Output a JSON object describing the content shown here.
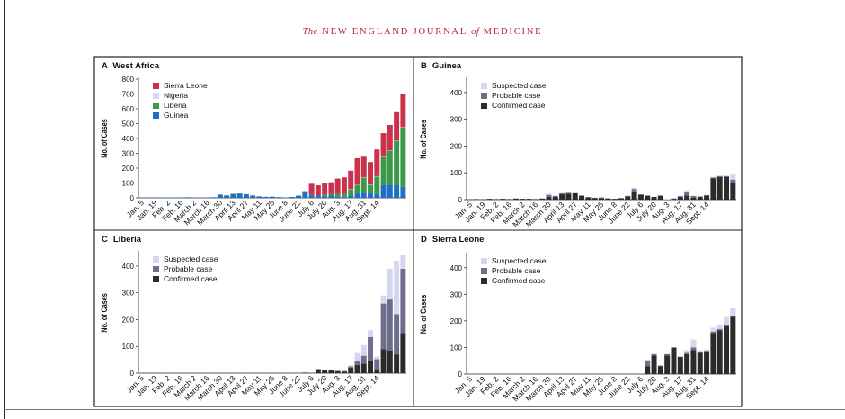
{
  "journal": {
    "title_pre": "The",
    "title_main": "NEW ENGLAND JOURNAL",
    "title_of": "of",
    "title_post": "MEDICINE"
  },
  "colors": {
    "sierra_leone": "#c8324a",
    "nigeria": "#d8d8ee",
    "liberia": "#3b9a4a",
    "guinea": "#1f6fc4",
    "suspected": "#d6d7ef",
    "probable": "#6e6e8c",
    "confirmed": "#2b2b2b"
  },
  "chart_data": [
    {
      "id": "A",
      "panel_letter": "A",
      "title": "West Africa",
      "type": "bar",
      "stacked": true,
      "ylabel": "No. of Cases",
      "ylim": [
        0,
        800
      ],
      "yticks": [
        0,
        100,
        200,
        300,
        400,
        500,
        600,
        700,
        800
      ],
      "x_tick_labels": [
        "Jan. 5",
        "Jan. 19",
        "Feb. 2",
        "Feb. 16",
        "March 2",
        "March 16",
        "March 30",
        "April 13",
        "April 27",
        "May 11",
        "May 25",
        "June 8",
        "June 22",
        "July 6",
        "July 20",
        "Aug. 3",
        "Aug. 17",
        "Aug. 31",
        "Sept. 14"
      ],
      "legend": [
        "Sierra Leone",
        "Nigeria",
        "Liberia",
        "Guinea"
      ],
      "legend_position": "top-left",
      "series": [
        {
          "name": "Guinea",
          "color_key": "guinea",
          "values": [
            1,
            2,
            1,
            3,
            2,
            3,
            2,
            4,
            3,
            3,
            2,
            4,
            22,
            15,
            25,
            27,
            24,
            16,
            10,
            7,
            8,
            5,
            3,
            6,
            15,
            45,
            20,
            15,
            10,
            15,
            10,
            8,
            15,
            30,
            35,
            30,
            25,
            85,
            90,
            85,
            75
          ]
        },
        {
          "name": "Liberia",
          "color_key": "liberia",
          "values": [
            0,
            0,
            0,
            0,
            0,
            0,
            0,
            0,
            0,
            0,
            0,
            0,
            0,
            2,
            3,
            3,
            1,
            0,
            0,
            0,
            0,
            0,
            0,
            0,
            0,
            0,
            0,
            0,
            12,
            10,
            15,
            20,
            40,
            55,
            100,
            60,
            120,
            190,
            230,
            300,
            400
          ]
        },
        {
          "name": "Nigeria",
          "color_key": "nigeria",
          "values": [
            0,
            0,
            0,
            0,
            0,
            0,
            0,
            0,
            0,
            0,
            0,
            0,
            0,
            0,
            0,
            0,
            0,
            0,
            0,
            0,
            0,
            0,
            0,
            0,
            0,
            0,
            0,
            0,
            0,
            0,
            0,
            0,
            3,
            2,
            2,
            1,
            1,
            1,
            1,
            2,
            1
          ]
        },
        {
          "name": "Sierra Leone",
          "color_key": "sierra_leone",
          "values": [
            0,
            0,
            0,
            0,
            0,
            0,
            0,
            0,
            0,
            0,
            0,
            0,
            0,
            0,
            0,
            0,
            0,
            0,
            0,
            0,
            0,
            0,
            0,
            0,
            0,
            0,
            75,
            70,
            80,
            80,
            105,
            110,
            125,
            180,
            140,
            150,
            180,
            160,
            170,
            190,
            225
          ]
        }
      ]
    },
    {
      "id": "B",
      "panel_letter": "B",
      "title": "Guinea",
      "type": "bar",
      "stacked": true,
      "ylabel": "No. of Cases",
      "ylim": [
        0,
        450
      ],
      "yticks": [
        0,
        100,
        200,
        300,
        400
      ],
      "x_tick_labels": [
        "Jan. 5",
        "Jan. 19",
        "Feb. 2",
        "Feb. 16",
        "March 2",
        "March 16",
        "March 30",
        "April 13",
        "April 27",
        "May 11",
        "May 25",
        "June 8",
        "June 22",
        "July 6",
        "July 20",
        "Aug. 3",
        "Aug. 17",
        "Aug. 31",
        "Sept. 14"
      ],
      "legend": [
        "Suspected case",
        "Probable case",
        "Confirmed case"
      ],
      "legend_position": "top-left",
      "series": [
        {
          "name": "Confirmed case",
          "color_key": "confirmed",
          "values": [
            1,
            2,
            1,
            3,
            2,
            3,
            2,
            4,
            3,
            3,
            2,
            4,
            10,
            10,
            20,
            22,
            24,
            14,
            8,
            6,
            6,
            4,
            3,
            5,
            12,
            30,
            18,
            15,
            10,
            15,
            1,
            3,
            10,
            15,
            8,
            10,
            15,
            80,
            85,
            85,
            65
          ]
        },
        {
          "name": "Probable case",
          "color_key": "probable",
          "values": [
            0,
            0,
            0,
            0,
            0,
            0,
            0,
            0,
            0,
            0,
            0,
            0,
            8,
            4,
            4,
            4,
            0,
            2,
            2,
            1,
            2,
            1,
            0,
            1,
            2,
            10,
            2,
            0,
            0,
            0,
            0,
            2,
            3,
            12,
            6,
            2,
            2,
            3,
            3,
            3,
            10
          ]
        },
        {
          "name": "Suspected case",
          "color_key": "suspected",
          "values": [
            0,
            0,
            0,
            0,
            0,
            0,
            0,
            0,
            0,
            0,
            0,
            0,
            4,
            1,
            1,
            1,
            0,
            0,
            0,
            0,
            0,
            0,
            0,
            0,
            1,
            5,
            0,
            0,
            0,
            0,
            1,
            1,
            2,
            8,
            1,
            1,
            1,
            2,
            2,
            2,
            20
          ]
        }
      ]
    },
    {
      "id": "C",
      "panel_letter": "C",
      "title": "Liberia",
      "type": "bar",
      "stacked": true,
      "ylabel": "No. of Cases",
      "ylim": [
        0,
        450
      ],
      "yticks": [
        0,
        100,
        200,
        300,
        400
      ],
      "x_tick_labels": [
        "Jan. 5",
        "Jan. 19",
        "Feb. 2",
        "Feb. 16",
        "March 2",
        "March 16",
        "March 30",
        "April 13",
        "April 27",
        "May 11",
        "May 25",
        "June 8",
        "June 22",
        "July 6",
        "July 20",
        "Aug. 3",
        "Aug. 17",
        "Aug. 31",
        "Sept. 14"
      ],
      "legend": [
        "Suspected case",
        "Probable case",
        "Confirmed case"
      ],
      "legend_position": "top-left",
      "series": [
        {
          "name": "Confirmed case",
          "color_key": "confirmed",
          "values": [
            0,
            0,
            0,
            0,
            0,
            0,
            0,
            0,
            0,
            0,
            0,
            0,
            0,
            0,
            0,
            0,
            0,
            0,
            0,
            0,
            0,
            0,
            0,
            0,
            0,
            2,
            0,
            15,
            13,
            12,
            8,
            6,
            20,
            30,
            35,
            45,
            12,
            90,
            85,
            70,
            150
          ]
        },
        {
          "name": "Probable case",
          "color_key": "probable",
          "values": [
            0,
            0,
            0,
            0,
            0,
            0,
            0,
            0,
            0,
            0,
            0,
            0,
            0,
            0,
            0,
            0,
            0,
            0,
            0,
            0,
            0,
            0,
            0,
            0,
            0,
            0,
            0,
            0,
            0,
            0,
            0,
            2,
            5,
            15,
            30,
            90,
            40,
            170,
            190,
            150,
            240
          ]
        },
        {
          "name": "Suspected case",
          "color_key": "suspected",
          "values": [
            0,
            0,
            0,
            0,
            0,
            0,
            0,
            0,
            0,
            0,
            0,
            0,
            0,
            0,
            0,
            0,
            0,
            0,
            0,
            0,
            0,
            0,
            0,
            0,
            0,
            0,
            0,
            0,
            0,
            0,
            0,
            2,
            5,
            30,
            40,
            25,
            10,
            30,
            115,
            200,
            50
          ]
        }
      ]
    },
    {
      "id": "D",
      "panel_letter": "D",
      "title": "Sierra Leone",
      "type": "bar",
      "stacked": true,
      "ylabel": "No. of Cases",
      "ylim": [
        0,
        450
      ],
      "yticks": [
        0,
        100,
        200,
        300,
        400
      ],
      "x_tick_labels": [
        "Jan. 5",
        "Jan. 19",
        "Feb. 2",
        "Feb. 16",
        "March 2",
        "March 16",
        "March 30",
        "April 13",
        "April 27",
        "May 11",
        "May 25",
        "June 8",
        "June 22",
        "July 6",
        "July 20",
        "Aug. 3",
        "Aug. 17",
        "Aug. 31",
        "Sept. 14"
      ],
      "legend": [
        "Suspected case",
        "Probable case",
        "Confirmed case"
      ],
      "legend_position": "top-left",
      "series": [
        {
          "name": "Confirmed case",
          "color_key": "confirmed",
          "values": [
            0,
            0,
            0,
            0,
            0,
            0,
            0,
            0,
            0,
            0,
            0,
            0,
            0,
            0,
            0,
            0,
            0,
            0,
            0,
            0,
            0,
            0,
            0,
            0,
            0,
            0,
            0,
            30,
            70,
            30,
            70,
            100,
            65,
            75,
            90,
            80,
            85,
            155,
            165,
            180,
            215
          ]
        },
        {
          "name": "Probable case",
          "color_key": "probable",
          "values": [
            0,
            0,
            0,
            0,
            0,
            0,
            0,
            0,
            0,
            0,
            0,
            0,
            0,
            0,
            0,
            0,
            0,
            0,
            0,
            0,
            0,
            0,
            0,
            0,
            0,
            0,
            0,
            20,
            5,
            2,
            5,
            0,
            0,
            5,
            10,
            2,
            3,
            5,
            5,
            5,
            5
          ]
        },
        {
          "name": "Suspected case",
          "color_key": "suspected",
          "values": [
            0,
            0,
            0,
            0,
            0,
            0,
            0,
            0,
            0,
            0,
            0,
            0,
            0,
            0,
            0,
            0,
            0,
            0,
            0,
            0,
            0,
            0,
            0,
            0,
            0,
            0,
            0,
            5,
            0,
            0,
            0,
            0,
            0,
            10,
            30,
            8,
            5,
            15,
            15,
            30,
            30
          ]
        }
      ]
    }
  ]
}
